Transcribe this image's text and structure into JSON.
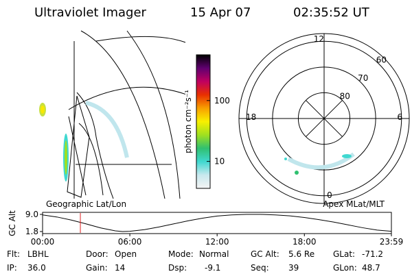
{
  "header": {
    "instrument": "Ultraviolet Imager",
    "date": "15 Apr 07",
    "time": "02:35:52 UT"
  },
  "map": {
    "label": "Geographic Lat/Lon"
  },
  "colorbar": {
    "label": "photon cm⁻²s⁻¹",
    "log": true,
    "lim": [
      3.6,
      565
    ],
    "ticks": [
      10,
      100
    ],
    "colors": [
      "#f4f4f4",
      "#c8e8ee",
      "#40d8d0",
      "#30c070",
      "#a0e020",
      "#f8f000",
      "#f8a000",
      "#e83000",
      "#c00060",
      "#600070",
      "#000000"
    ]
  },
  "polar": {
    "label": "Apex MLat/MLT",
    "lat_lim": [
      90,
      57
    ],
    "lat_rings": [
      80,
      70,
      60
    ],
    "mlt": [
      12,
      18,
      6,
      0
    ]
  },
  "timeline": {
    "ylabel": "GC Alt",
    "ylim": [
      1.8,
      9.0
    ],
    "yticks": [
      {
        "value": 9.0,
        "label": "9.0"
      },
      1.8
    ],
    "xlim": [
      0,
      23.983
    ],
    "xticks": [
      {
        "value": 0,
        "label": "00:00"
      },
      {
        "value": 6,
        "label": "06:00"
      },
      {
        "value": 12,
        "label": "12:00"
      },
      {
        "value": 18,
        "label": "18:00"
      },
      {
        "value": 23.983,
        "label": "23:59"
      }
    ],
    "x": [
      0,
      1,
      2,
      3,
      4,
      5,
      5.5,
      6,
      7,
      8,
      9,
      10,
      11,
      12,
      13,
      14,
      15,
      16,
      17,
      18,
      19,
      20,
      21,
      22,
      23,
      23.983
    ],
    "values": [
      8.8,
      7.9,
      6.6,
      5.0,
      3.3,
      2.1,
      1.8,
      1.9,
      2.6,
      3.7,
      5.0,
      6.3,
      7.4,
      8.3,
      8.8,
      9.0,
      9.0,
      8.8,
      8.4,
      7.7,
      6.8,
      5.8,
      4.6,
      3.4,
      2.4,
      1.9
    ],
    "marker": 2.598,
    "marker_color": "#e02020"
  },
  "footer": [
    [
      [
        "Flt:",
        "LBHL"
      ],
      [
        "Door:",
        "Open"
      ],
      [
        "Mode:",
        "Normal"
      ],
      [
        "GC Alt:",
        "5.6 Re"
      ],
      [
        "GLat:",
        "-71.2"
      ]
    ],
    [
      [
        "IP:",
        "36.0"
      ],
      [
        "Gain:",
        "14"
      ],
      [
        "Dsp:",
        "-9.1"
      ],
      [
        "Seq:",
        "39"
      ],
      [
        "GLon:",
        "48.7"
      ]
    ]
  ]
}
